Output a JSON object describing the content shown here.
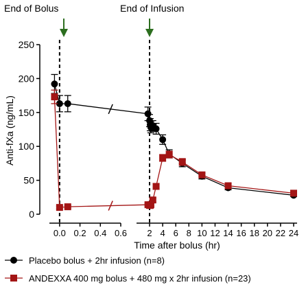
{
  "chart_data": {
    "type": "line",
    "annotations": {
      "bolus_end": "End of Bolus",
      "infusion_end": "End of Infusion"
    },
    "ylabel": "Anti-fXa (ng/mL)",
    "xlabel": "Time after bolus (hr)",
    "ylim": [
      0,
      250
    ],
    "y_ticks": [
      0,
      50,
      100,
      150,
      200,
      250
    ],
    "x_axis_segments": [
      {
        "range": [
          -0.1,
          0.6
        ],
        "ticks": [
          0.0,
          0.2,
          0.4,
          0.6
        ],
        "tick_labels": [
          "0.0",
          "0.2",
          "0.4",
          "0.6"
        ]
      },
      {
        "range": [
          1.5,
          24
        ],
        "ticks": [
          2,
          4,
          6,
          8,
          10,
          12,
          14,
          16,
          18,
          20,
          22,
          24
        ],
        "tick_labels": [
          "2",
          "4",
          "6",
          "8",
          "10",
          "12",
          "14",
          "16",
          "18",
          "20",
          "22",
          "24"
        ]
      }
    ],
    "grid": false,
    "legend_position": "bottom",
    "series": [
      {
        "name": "Placebo bolus + 2hr infusion (n=8)",
        "color": "#000000",
        "marker": "circle",
        "points": [
          {
            "x": -0.05,
            "y": 192,
            "err": 14
          },
          {
            "x": 0.0,
            "y": 163,
            "err": 12
          },
          {
            "x": 0.08,
            "y": 163,
            "err": 12
          },
          {
            "x": 1.75,
            "y": 148,
            "err": 10
          },
          {
            "x": 2.0,
            "y": 138,
            "err": 9
          },
          {
            "x": 2.1,
            "y": 132,
            "err": 9
          },
          {
            "x": 2.2,
            "y": 128,
            "err": 8
          },
          {
            "x": 2.5,
            "y": 130,
            "err": 8
          },
          {
            "x": 3.0,
            "y": 126,
            "err": 8
          },
          {
            "x": 4.0,
            "y": 110,
            "err": 7
          },
          {
            "x": 5.0,
            "y": 89,
            "err": 6
          },
          {
            "x": 7.0,
            "y": 75,
            "err": 5
          },
          {
            "x": 10.0,
            "y": 56,
            "err": 4
          },
          {
            "x": 14.0,
            "y": 39,
            "err": 3
          },
          {
            "x": 24.0,
            "y": 28,
            "err": 2
          }
        ]
      },
      {
        "name": "ANDEXXA 400 mg bolus + 480 mg x 2hr infusion (n=23)",
        "color": "#a31515",
        "marker": "square",
        "points": [
          {
            "x": -0.05,
            "y": 173,
            "err": 10
          },
          {
            "x": 0.0,
            "y": 10,
            "err": 2
          },
          {
            "x": 0.08,
            "y": 11,
            "err": 2
          },
          {
            "x": 1.75,
            "y": 14,
            "err": 2
          },
          {
            "x": 2.0,
            "y": 13,
            "err": 2
          },
          {
            "x": 2.1,
            "y": 13,
            "err": 2
          },
          {
            "x": 2.2,
            "y": 14,
            "err": 2
          },
          {
            "x": 2.5,
            "y": 21,
            "err": 3
          },
          {
            "x": 3.0,
            "y": 41,
            "err": 4
          },
          {
            "x": 4.0,
            "y": 83,
            "err": 5
          },
          {
            "x": 5.0,
            "y": 88,
            "err": 5
          },
          {
            "x": 7.0,
            "y": 77,
            "err": 5
          },
          {
            "x": 10.0,
            "y": 58,
            "err": 4
          },
          {
            "x": 14.0,
            "y": 42,
            "err": 3
          },
          {
            "x": 24.0,
            "y": 31,
            "err": 2
          }
        ]
      }
    ]
  }
}
